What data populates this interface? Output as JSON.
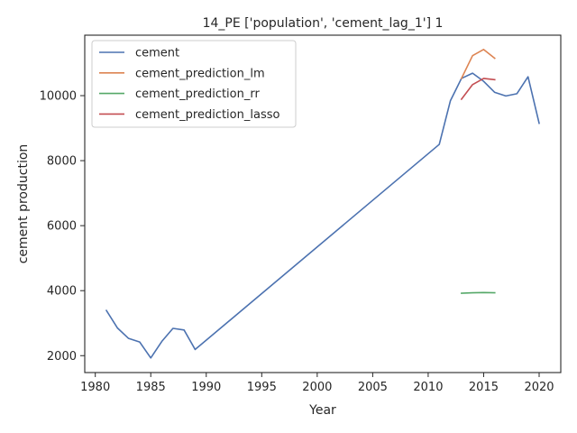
{
  "chart_data": {
    "type": "line",
    "title": "14_PE ['population', 'cement_lag_1'] 1",
    "xlabel": "Year",
    "ylabel": "cement production",
    "xlim": [
      1979.05,
      2021.95
    ],
    "ylim": [
      1480,
      11860
    ],
    "x_ticks": [
      1980,
      1985,
      1990,
      1995,
      2000,
      2005,
      2010,
      2015,
      2020
    ],
    "y_ticks": [
      2000,
      4000,
      6000,
      8000,
      10000
    ],
    "grid": false,
    "legend_position": "top-left",
    "series": [
      {
        "name": "cement",
        "color": "#4c72b0",
        "x": [
          1981,
          1982,
          1983,
          1984,
          1985,
          1986,
          1987,
          1988,
          1989,
          2011,
          2012,
          2013,
          2014,
          2015,
          2016,
          2017,
          2018,
          2019,
          2020
        ],
        "y": [
          3390,
          2850,
          2530,
          2420,
          1930,
          2440,
          2840,
          2790,
          2190,
          8500,
          9840,
          10530,
          10690,
          10440,
          10100,
          9990,
          10060,
          10580,
          9150
        ]
      },
      {
        "name": "cement_prediction_lm",
        "color": "#dd8452",
        "x": [
          2013,
          2014,
          2015,
          2016
        ],
        "y": [
          10530,
          11230,
          11420,
          11150
        ]
      },
      {
        "name": "cement_prediction_rr",
        "color": "#55a868",
        "x": [
          2013,
          2014,
          2015,
          2016
        ],
        "y": [
          3920,
          3935,
          3940,
          3935
        ]
      },
      {
        "name": "cement_prediction_lasso",
        "color": "#c44e52",
        "x": [
          2013,
          2014,
          2015,
          2016
        ],
        "y": [
          9890,
          10340,
          10530,
          10490
        ]
      }
    ]
  }
}
